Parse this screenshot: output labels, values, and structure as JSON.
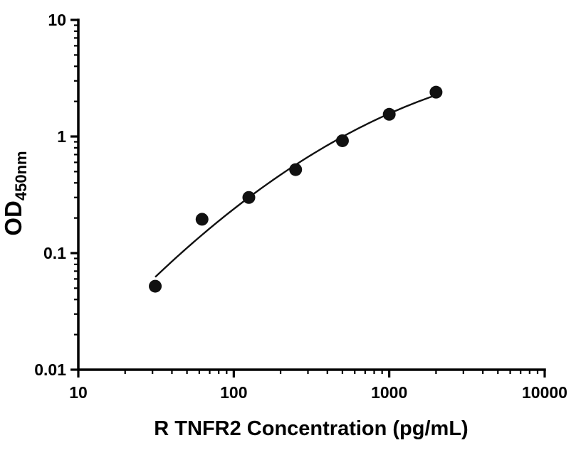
{
  "chart_data": {
    "type": "scatter",
    "title": "",
    "xlabel": "R TNFR2 Concentration (pg/mL)",
    "ylabel_main": "OD",
    "ylabel_sub": "450nm",
    "x_scale": "log",
    "y_scale": "log",
    "xlim": [
      10,
      10000
    ],
    "ylim": [
      0.01,
      10
    ],
    "x_ticks": [
      10,
      100,
      1000,
      10000
    ],
    "y_ticks": [
      0.01,
      0.1,
      1,
      10
    ],
    "points": [
      {
        "x": 31.25,
        "y": 0.052
      },
      {
        "x": 62.5,
        "y": 0.195
      },
      {
        "x": 125,
        "y": 0.3
      },
      {
        "x": 250,
        "y": 0.52
      },
      {
        "x": 500,
        "y": 0.92
      },
      {
        "x": 1000,
        "y": 1.55
      },
      {
        "x": 2000,
        "y": 2.4
      }
    ],
    "fit": "quadratic-loglog",
    "marker_color": "#111111",
    "line_color": "#111111",
    "axis_color": "#000000",
    "background": "#ffffff",
    "grid": false,
    "legend": false
  }
}
